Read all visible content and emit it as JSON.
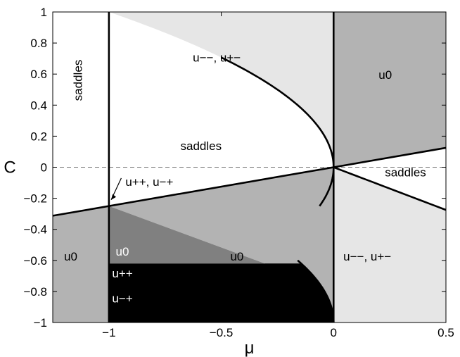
{
  "chart_data": {
    "type": "region-diagram",
    "xlabel": "μ",
    "ylabel": "C",
    "xlim": [
      -1.25,
      0.5
    ],
    "ylim": [
      -1,
      1
    ],
    "xticks": [
      {
        "value": -1,
        "label": "−1"
      },
      {
        "value": -0.5,
        "label": "−0.5"
      },
      {
        "value": 0,
        "label": "0"
      },
      {
        "value": 0.5,
        "label": "0.5"
      }
    ],
    "yticks": [
      {
        "value": 1,
        "label": "1"
      },
      {
        "value": 0.8,
        "label": "0.8"
      },
      {
        "value": 0.6,
        "label": "0.6"
      },
      {
        "value": 0.4,
        "label": "0.4"
      },
      {
        "value": 0.2,
        "label": "0.2"
      },
      {
        "value": 0,
        "label": "0"
      },
      {
        "value": -0.2,
        "label": "−0.2"
      },
      {
        "value": -0.4,
        "label": "−0.4"
      },
      {
        "value": -0.6,
        "label": "−0.6"
      },
      {
        "value": -0.8,
        "label": "−0.8"
      },
      {
        "value": -1,
        "label": "−1"
      }
    ],
    "dashed_reference": {
      "y": 0
    },
    "boundaries": [
      {
        "name": "vertical line μ = −1",
        "x": -1
      },
      {
        "name": "vertical line μ = 0",
        "x": 0
      },
      {
        "name": "line C = μ/4",
        "points": [
          [
            -1.25,
            -0.3125
          ],
          [
            0.5,
            0.125
          ]
        ]
      },
      {
        "name": "parabola μ = −(C+1)²",
        "points": [
          [
            -0.6,
            -1
          ],
          [
            -0.81,
            -0.9
          ],
          [
            -0.96,
            -0.8
          ],
          [
            -1.0,
            -0.6
          ]
        ]
      },
      {
        "name": "parabola μ = −C²",
        "points": [
          [
            -0.5,
            0.707
          ],
          [
            -1.0,
            0.0
          ]
        ]
      }
    ],
    "annotations": [
      {
        "text": "saddles",
        "mu": -1.12,
        "c": 0.56,
        "rotated": true,
        "color": "#000000"
      },
      {
        "text": "u−−, u+−",
        "mu": -0.52,
        "c": 0.68,
        "color": "#000000"
      },
      {
        "text": "u0",
        "mu": 0.23,
        "c": 0.57,
        "color": "#000000"
      },
      {
        "text": "saddles",
        "mu": -0.59,
        "c": 0.11,
        "color": "#000000"
      },
      {
        "text": "saddles",
        "mu": 0.32,
        "c": -0.06,
        "color": "#000000"
      },
      {
        "text": "u++, u−+",
        "mu": -0.82,
        "c": -0.12,
        "color": "#000000"
      },
      {
        "text": "u0",
        "mu": -1.17,
        "c": -0.6,
        "color": "#000000"
      },
      {
        "text": "u0",
        "mu": -0.43,
        "c": -0.6,
        "color": "#000000"
      },
      {
        "text": "u−−, u+−",
        "mu": 0.15,
        "c": -0.6,
        "color": "#000000"
      },
      {
        "text": "u0",
        "mu": -0.94,
        "c": -0.57,
        "color": "#ffffff"
      },
      {
        "text": "u++",
        "mu": -0.94,
        "c": -0.71,
        "color": "#ffffff"
      },
      {
        "text": "u−+",
        "mu": -0.94,
        "c": -0.87,
        "color": "#ffffff"
      }
    ],
    "colors": {
      "white": "#ffffff",
      "light_gray": "#e6e6e6",
      "mid_gray": "#b3b3b3",
      "dark_gray": "#808080",
      "black": "#000000"
    }
  }
}
